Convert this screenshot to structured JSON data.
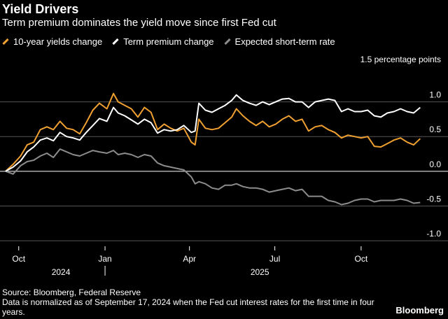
{
  "header": {
    "title": "Yield Drivers",
    "subtitle": "Term premium dominates the yield move since first Fed cut"
  },
  "footer": {
    "source": "Source: Bloomberg, Federal Reserve",
    "note": "Data is normalized as of September 17, 2024 when the Fed cut interest rates for the first time in four years.",
    "brand": "Bloomberg"
  },
  "chart_data": {
    "type": "line",
    "units_label": "1.5 percentage points",
    "ylim": [
      -1.1,
      1.5
    ],
    "xlim": [
      "2024-09-17",
      "2025-12-05"
    ],
    "y_ticks": [
      {
        "value": 1.0,
        "label": "1.0"
      },
      {
        "value": 0.5,
        "label": "0.5"
      },
      {
        "value": 0.0,
        "label": "0.0"
      },
      {
        "value": -0.5,
        "label": "-0.5"
      },
      {
        "value": -1.0,
        "label": "-1.0"
      }
    ],
    "x_ticks": [
      {
        "date": "2024-10-01",
        "label": "Oct"
      },
      {
        "date": "2025-01-01",
        "label": "Jan"
      },
      {
        "date": "2025-04-01",
        "label": "Apr"
      },
      {
        "date": "2025-07-01",
        "label": "Jul"
      },
      {
        "date": "2025-10-01",
        "label": "Oct"
      }
    ],
    "year_labels": [
      {
        "date": "2024-11-15",
        "label": "2024"
      },
      {
        "date": "2025-06-15",
        "label": "2025"
      }
    ],
    "grid": true,
    "legend_position": "top-left",
    "series": [
      {
        "name": "10-year yields change",
        "color": "#f0a030",
        "points": [
          [
            "2024-09-17",
            0.0
          ],
          [
            "2024-09-25",
            0.1
          ],
          [
            "2024-10-03",
            0.22
          ],
          [
            "2024-10-10",
            0.38
          ],
          [
            "2024-10-17",
            0.42
          ],
          [
            "2024-10-24",
            0.6
          ],
          [
            "2024-10-31",
            0.64
          ],
          [
            "2024-11-07",
            0.6
          ],
          [
            "2024-11-14",
            0.72
          ],
          [
            "2024-11-21",
            0.62
          ],
          [
            "2024-11-28",
            0.6
          ],
          [
            "2024-12-05",
            0.54
          ],
          [
            "2024-12-12",
            0.7
          ],
          [
            "2024-12-19",
            0.88
          ],
          [
            "2024-12-26",
            0.98
          ],
          [
            "2025-01-03",
            0.9
          ],
          [
            "2025-01-10",
            1.12
          ],
          [
            "2025-01-15",
            1.0
          ],
          [
            "2025-01-22",
            0.95
          ],
          [
            "2025-01-29",
            0.9
          ],
          [
            "2025-02-05",
            0.78
          ],
          [
            "2025-02-12",
            0.92
          ],
          [
            "2025-02-19",
            0.85
          ],
          [
            "2025-02-26",
            0.6
          ],
          [
            "2025-03-05",
            0.68
          ],
          [
            "2025-03-12",
            0.62
          ],
          [
            "2025-03-19",
            0.58
          ],
          [
            "2025-03-26",
            0.62
          ],
          [
            "2025-04-03",
            0.42
          ],
          [
            "2025-04-07",
            0.38
          ],
          [
            "2025-04-11",
            0.75
          ],
          [
            "2025-04-18",
            0.62
          ],
          [
            "2025-04-25",
            0.6
          ],
          [
            "2025-05-02",
            0.62
          ],
          [
            "2025-05-09",
            0.7
          ],
          [
            "2025-05-16",
            0.78
          ],
          [
            "2025-05-21",
            0.9
          ],
          [
            "2025-05-28",
            0.8
          ],
          [
            "2025-06-04",
            0.72
          ],
          [
            "2025-06-11",
            0.66
          ],
          [
            "2025-06-18",
            0.72
          ],
          [
            "2025-06-25",
            0.64
          ],
          [
            "2025-07-02",
            0.68
          ],
          [
            "2025-07-09",
            0.75
          ],
          [
            "2025-07-16",
            0.8
          ],
          [
            "2025-07-23",
            0.72
          ],
          [
            "2025-07-30",
            0.75
          ],
          [
            "2025-08-06",
            0.58
          ],
          [
            "2025-08-13",
            0.64
          ],
          [
            "2025-08-20",
            0.66
          ],
          [
            "2025-08-27",
            0.6
          ],
          [
            "2025-09-03",
            0.56
          ],
          [
            "2025-09-10",
            0.48
          ],
          [
            "2025-09-17",
            0.52
          ],
          [
            "2025-09-24",
            0.5
          ],
          [
            "2025-10-01",
            0.48
          ],
          [
            "2025-10-08",
            0.5
          ],
          [
            "2025-10-15",
            0.36
          ],
          [
            "2025-10-22",
            0.35
          ],
          [
            "2025-10-29",
            0.4
          ],
          [
            "2025-11-05",
            0.45
          ],
          [
            "2025-11-12",
            0.48
          ],
          [
            "2025-11-19",
            0.42
          ],
          [
            "2025-11-26",
            0.38
          ],
          [
            "2025-12-03",
            0.47
          ]
        ]
      },
      {
        "name": "Term premium change",
        "color": "#ffffff",
        "points": [
          [
            "2024-09-17",
            0.0
          ],
          [
            "2024-09-25",
            0.06
          ],
          [
            "2024-10-03",
            0.15
          ],
          [
            "2024-10-10",
            0.28
          ],
          [
            "2024-10-17",
            0.35
          ],
          [
            "2024-10-24",
            0.45
          ],
          [
            "2024-10-31",
            0.48
          ],
          [
            "2024-11-07",
            0.44
          ],
          [
            "2024-11-14",
            0.56
          ],
          [
            "2024-11-21",
            0.5
          ],
          [
            "2024-11-28",
            0.48
          ],
          [
            "2024-12-05",
            0.45
          ],
          [
            "2024-12-12",
            0.56
          ],
          [
            "2024-12-19",
            0.66
          ],
          [
            "2024-12-26",
            0.76
          ],
          [
            "2025-01-03",
            0.72
          ],
          [
            "2025-01-10",
            0.92
          ],
          [
            "2025-01-15",
            0.84
          ],
          [
            "2025-01-22",
            0.8
          ],
          [
            "2025-01-29",
            0.74
          ],
          [
            "2025-02-05",
            0.68
          ],
          [
            "2025-02-12",
            0.75
          ],
          [
            "2025-02-19",
            0.7
          ],
          [
            "2025-02-26",
            0.55
          ],
          [
            "2025-03-05",
            0.6
          ],
          [
            "2025-03-12",
            0.58
          ],
          [
            "2025-03-19",
            0.6
          ],
          [
            "2025-03-26",
            0.66
          ],
          [
            "2025-04-03",
            0.56
          ],
          [
            "2025-04-07",
            0.58
          ],
          [
            "2025-04-11",
            0.98
          ],
          [
            "2025-04-18",
            0.88
          ],
          [
            "2025-04-25",
            0.85
          ],
          [
            "2025-05-02",
            0.9
          ],
          [
            "2025-05-09",
            0.95
          ],
          [
            "2025-05-16",
            1.02
          ],
          [
            "2025-05-21",
            1.1
          ],
          [
            "2025-05-28",
            1.02
          ],
          [
            "2025-06-04",
            0.98
          ],
          [
            "2025-06-11",
            0.95
          ],
          [
            "2025-06-18",
            1.0
          ],
          [
            "2025-06-25",
            0.96
          ],
          [
            "2025-07-02",
            1.0
          ],
          [
            "2025-07-09",
            1.04
          ],
          [
            "2025-07-16",
            1.05
          ],
          [
            "2025-07-23",
            1.0
          ],
          [
            "2025-07-30",
            1.0
          ],
          [
            "2025-08-06",
            0.92
          ],
          [
            "2025-08-13",
            1.0
          ],
          [
            "2025-08-20",
            1.02
          ],
          [
            "2025-08-27",
            1.04
          ],
          [
            "2025-09-03",
            1.02
          ],
          [
            "2025-09-10",
            0.86
          ],
          [
            "2025-09-17",
            0.9
          ],
          [
            "2025-09-24",
            0.86
          ],
          [
            "2025-10-01",
            0.86
          ],
          [
            "2025-10-08",
            0.88
          ],
          [
            "2025-10-15",
            0.8
          ],
          [
            "2025-10-22",
            0.78
          ],
          [
            "2025-10-29",
            0.84
          ],
          [
            "2025-11-05",
            0.86
          ],
          [
            "2025-11-12",
            0.9
          ],
          [
            "2025-11-19",
            0.86
          ],
          [
            "2025-11-26",
            0.84
          ],
          [
            "2025-12-03",
            0.92
          ]
        ]
      },
      {
        "name": "Expected short-term rate",
        "color": "#8c8c8c",
        "points": [
          [
            "2024-09-17",
            0.0
          ],
          [
            "2024-09-25",
            -0.04
          ],
          [
            "2024-10-03",
            0.08
          ],
          [
            "2024-10-10",
            0.14
          ],
          [
            "2024-10-17",
            0.16
          ],
          [
            "2024-10-24",
            0.22
          ],
          [
            "2024-10-31",
            0.26
          ],
          [
            "2024-11-07",
            0.2
          ],
          [
            "2024-11-14",
            0.32
          ],
          [
            "2024-11-21",
            0.28
          ],
          [
            "2024-11-28",
            0.24
          ],
          [
            "2024-12-05",
            0.22
          ],
          [
            "2024-12-12",
            0.26
          ],
          [
            "2024-12-19",
            0.3
          ],
          [
            "2024-12-26",
            0.28
          ],
          [
            "2025-01-03",
            0.26
          ],
          [
            "2025-01-10",
            0.3
          ],
          [
            "2025-01-15",
            0.24
          ],
          [
            "2025-01-22",
            0.26
          ],
          [
            "2025-01-29",
            0.24
          ],
          [
            "2025-02-05",
            0.2
          ],
          [
            "2025-02-12",
            0.24
          ],
          [
            "2025-02-19",
            0.22
          ],
          [
            "2025-02-26",
            0.12
          ],
          [
            "2025-03-05",
            0.08
          ],
          [
            "2025-03-12",
            0.06
          ],
          [
            "2025-03-19",
            0.04
          ],
          [
            "2025-03-26",
            0.02
          ],
          [
            "2025-04-03",
            -0.08
          ],
          [
            "2025-04-07",
            -0.18
          ],
          [
            "2025-04-11",
            -0.15
          ],
          [
            "2025-04-18",
            -0.18
          ],
          [
            "2025-04-25",
            -0.24
          ],
          [
            "2025-05-02",
            -0.26
          ],
          [
            "2025-05-09",
            -0.2
          ],
          [
            "2025-05-16",
            -0.2
          ],
          [
            "2025-05-21",
            -0.18
          ],
          [
            "2025-05-28",
            -0.22
          ],
          [
            "2025-06-04",
            -0.24
          ],
          [
            "2025-06-11",
            -0.24
          ],
          [
            "2025-06-18",
            -0.26
          ],
          [
            "2025-06-25",
            -0.3
          ],
          [
            "2025-07-02",
            -0.28
          ],
          [
            "2025-07-09",
            -0.26
          ],
          [
            "2025-07-16",
            -0.24
          ],
          [
            "2025-07-23",
            -0.28
          ],
          [
            "2025-07-30",
            -0.26
          ],
          [
            "2025-08-06",
            -0.36
          ],
          [
            "2025-08-13",
            -0.36
          ],
          [
            "2025-08-20",
            -0.36
          ],
          [
            "2025-08-27",
            -0.42
          ],
          [
            "2025-09-03",
            -0.44
          ],
          [
            "2025-09-10",
            -0.48
          ],
          [
            "2025-09-17",
            -0.46
          ],
          [
            "2025-09-24",
            -0.42
          ],
          [
            "2025-10-01",
            -0.4
          ],
          [
            "2025-10-08",
            -0.4
          ],
          [
            "2025-10-15",
            -0.44
          ],
          [
            "2025-10-22",
            -0.42
          ],
          [
            "2025-10-29",
            -0.42
          ],
          [
            "2025-11-05",
            -0.42
          ],
          [
            "2025-11-12",
            -0.4
          ],
          [
            "2025-11-19",
            -0.42
          ],
          [
            "2025-11-26",
            -0.46
          ],
          [
            "2025-12-03",
            -0.45
          ]
        ]
      }
    ]
  }
}
